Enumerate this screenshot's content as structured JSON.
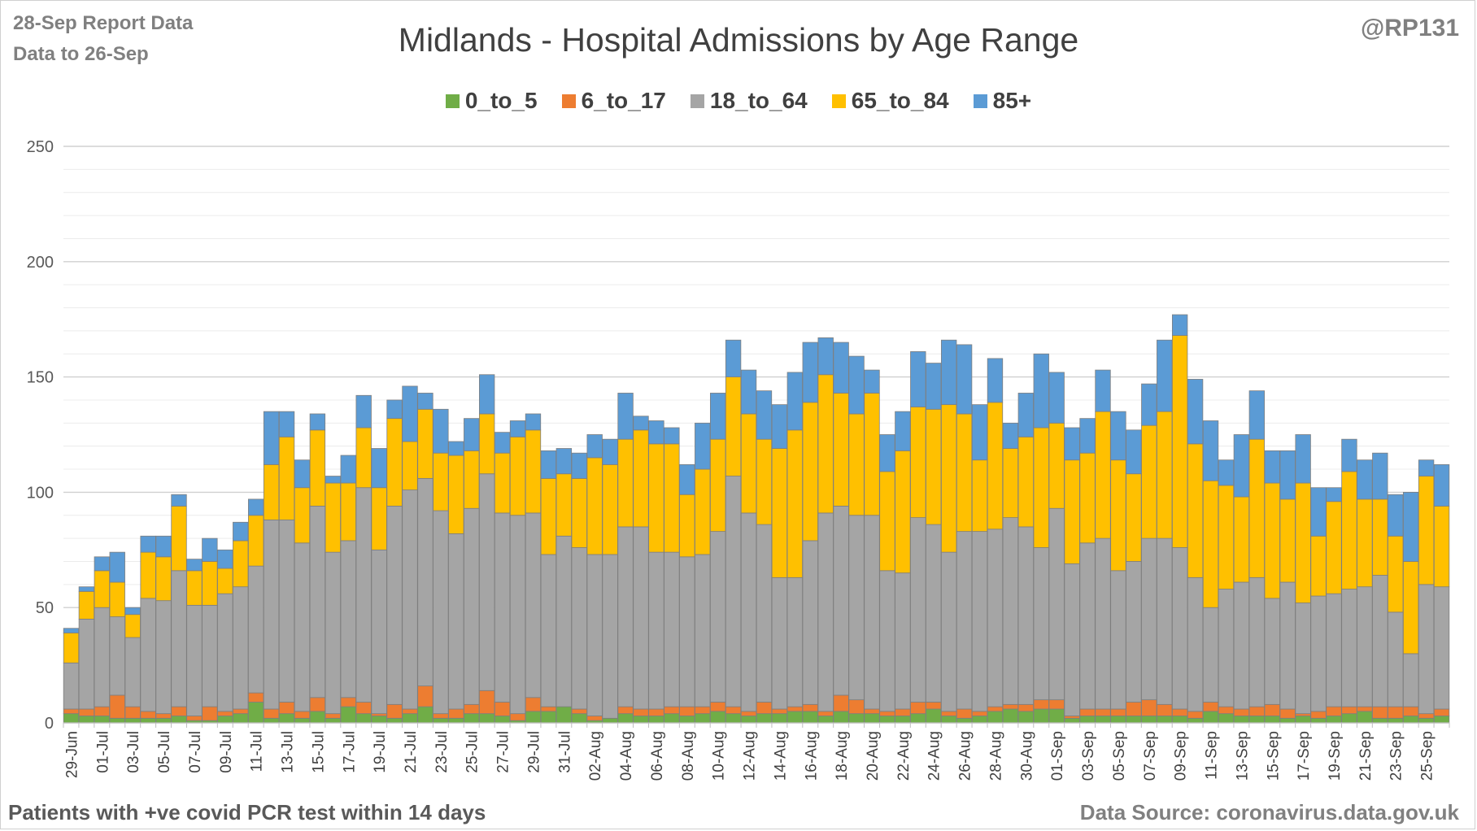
{
  "header": {
    "report_date": "28-Sep Report Data",
    "data_to": "Data to 26-Sep",
    "handle": "@RP131"
  },
  "footer": {
    "note": "Patients with  +ve covid PCR test within 14 days",
    "source": "Data Source: coronavirus.data.gov.uk"
  },
  "colors": {
    "0_to_5": "#70ad47",
    "6_to_17": "#ed7d31",
    "18_to_64": "#a5a5a5",
    "65_to_84": "#ffc000",
    "85+": "#5b9bd5",
    "gridline": "#d9d9d9",
    "bar_outline": "#7f7f7f"
  },
  "chart_data": {
    "type": "bar",
    "stacked": true,
    "title": "Midlands - Hospital Admissions by Age Range",
    "xlabel": "",
    "ylabel": "",
    "ylim": [
      0,
      250
    ],
    "yticks": [
      0,
      50,
      100,
      150,
      200,
      250
    ],
    "grid": true,
    "legend_position": "top",
    "tick_labels": [
      "29-Jun",
      "01-Jul",
      "03-Jul",
      "05-Jul",
      "07-Jul",
      "09-Jul",
      "11-Jul",
      "13-Jul",
      "15-Jul",
      "17-Jul",
      "19-Jul",
      "21-Jul",
      "23-Jul",
      "25-Jul",
      "27-Jul",
      "29-Jul",
      "31-Jul",
      "02-Aug",
      "04-Aug",
      "06-Aug",
      "08-Aug",
      "10-Aug",
      "12-Aug",
      "14-Aug",
      "16-Aug",
      "18-Aug",
      "20-Aug",
      "22-Aug",
      "24-Aug",
      "26-Aug",
      "28-Aug",
      "30-Aug",
      "01-Sep",
      "03-Sep",
      "05-Sep",
      "07-Sep",
      "09-Sep",
      "11-Sep",
      "13-Sep",
      "15-Sep",
      "17-Sep",
      "19-Sep",
      "21-Sep",
      "23-Sep",
      "25-Sep"
    ],
    "categories": [
      "29-Jun",
      "30-Jun",
      "01-Jul",
      "02-Jul",
      "03-Jul",
      "04-Jul",
      "05-Jul",
      "06-Jul",
      "07-Jul",
      "08-Jul",
      "09-Jul",
      "10-Jul",
      "11-Jul",
      "12-Jul",
      "13-Jul",
      "14-Jul",
      "15-Jul",
      "16-Jul",
      "17-Jul",
      "18-Jul",
      "19-Jul",
      "20-Jul",
      "21-Jul",
      "22-Jul",
      "23-Jul",
      "24-Jul",
      "25-Jul",
      "26-Jul",
      "27-Jul",
      "28-Jul",
      "29-Jul",
      "30-Jul",
      "31-Jul",
      "01-Aug",
      "02-Aug",
      "03-Aug",
      "04-Aug",
      "05-Aug",
      "06-Aug",
      "07-Aug",
      "08-Aug",
      "09-Aug",
      "10-Aug",
      "11-Aug",
      "12-Aug",
      "13-Aug",
      "14-Aug",
      "15-Aug",
      "16-Aug",
      "17-Aug",
      "18-Aug",
      "19-Aug",
      "20-Aug",
      "21-Aug",
      "22-Aug",
      "23-Aug",
      "24-Aug",
      "25-Aug",
      "26-Aug",
      "27-Aug",
      "28-Aug",
      "29-Aug",
      "30-Aug",
      "31-Aug",
      "01-Sep",
      "02-Sep",
      "03-Sep",
      "04-Sep",
      "05-Sep",
      "06-Sep",
      "07-Sep",
      "08-Sep",
      "09-Sep",
      "10-Sep",
      "11-Sep",
      "12-Sep",
      "13-Sep",
      "14-Sep",
      "15-Sep",
      "16-Sep",
      "17-Sep",
      "18-Sep",
      "19-Sep",
      "20-Sep",
      "21-Sep",
      "22-Sep",
      "23-Sep",
      "24-Sep",
      "25-Sep",
      "26-Sep"
    ],
    "series": [
      {
        "name": "0_to_5",
        "values": [
          4,
          3,
          3,
          2,
          2,
          2,
          2,
          3,
          1,
          1,
          3,
          4,
          9,
          2,
          4,
          2,
          5,
          2,
          7,
          4,
          3,
          2,
          4,
          7,
          2,
          2,
          4,
          4,
          3,
          1,
          5,
          5,
          7,
          4,
          1,
          2,
          4,
          3,
          3,
          4,
          3,
          4,
          5,
          4,
          3,
          4,
          4,
          5,
          5,
          3,
          5,
          4,
          4,
          3,
          3,
          4,
          6,
          3,
          2,
          3,
          5,
          6,
          5,
          6,
          6,
          2,
          3,
          3,
          3,
          3,
          3,
          3,
          3,
          2,
          5,
          4,
          3,
          3,
          3,
          2,
          3,
          2,
          3,
          4,
          5,
          2,
          2,
          3,
          2,
          3
        ]
      },
      {
        "name": "6_to_17",
        "values": [
          2,
          3,
          4,
          10,
          5,
          3,
          2,
          4,
          2,
          6,
          2,
          2,
          4,
          4,
          5,
          3,
          6,
          2,
          4,
          5,
          1,
          6,
          2,
          9,
          2,
          4,
          4,
          10,
          6,
          3,
          6,
          2,
          0,
          2,
          2,
          0,
          3,
          3,
          3,
          3,
          4,
          3,
          4,
          3,
          2,
          5,
          2,
          2,
          3,
          2,
          7,
          6,
          2,
          2,
          3,
          5,
          3,
          2,
          4,
          2,
          2,
          2,
          3,
          4,
          4,
          1,
          3,
          3,
          3,
          6,
          7,
          5,
          3,
          3,
          4,
          3,
          3,
          4,
          5,
          4,
          1,
          3,
          4,
          3,
          2,
          5,
          5,
          4,
          2,
          3
        ]
      },
      {
        "name": "18_to_64",
        "values": [
          20,
          39,
          43,
          34,
          30,
          49,
          49,
          59,
          48,
          44,
          51,
          53,
          55,
          82,
          79,
          73,
          83,
          70,
          68,
          93,
          71,
          86,
          95,
          90,
          88,
          76,
          85,
          94,
          82,
          86,
          80,
          66,
          74,
          70,
          70,
          71,
          78,
          79,
          68,
          67,
          65,
          66,
          74,
          100,
          86,
          77,
          57,
          56,
          71,
          86,
          82,
          80,
          84,
          61,
          59,
          80,
          77,
          69,
          77,
          78,
          77,
          81,
          77,
          66,
          83,
          66,
          72,
          74,
          60,
          61,
          70,
          72,
          70,
          58,
          41,
          51,
          55,
          56,
          46,
          55,
          48,
          50,
          49,
          51,
          52,
          57,
          41,
          23,
          56,
          53
        ]
      },
      {
        "name": "65_to_84",
        "values": [
          13,
          12,
          16,
          15,
          10,
          20,
          19,
          28,
          15,
          19,
          11,
          20,
          22,
          24,
          36,
          24,
          33,
          30,
          25,
          26,
          27,
          38,
          21,
          30,
          25,
          34,
          25,
          26,
          26,
          34,
          36,
          33,
          27,
          30,
          42,
          39,
          38,
          42,
          47,
          47,
          27,
          37,
          40,
          43,
          43,
          37,
          56,
          64,
          60,
          60,
          49,
          44,
          53,
          43,
          53,
          48,
          50,
          64,
          51,
          31,
          55,
          30,
          39,
          52,
          37,
          45,
          39,
          55,
          48,
          38,
          49,
          55,
          92,
          58,
          55,
          45,
          37,
          60,
          50,
          36,
          52,
          26,
          40,
          51,
          38,
          33,
          33,
          40,
          47,
          35
        ]
      },
      {
        "name": "85+",
        "values": [
          2,
          2,
          6,
          13,
          3,
          7,
          9,
          5,
          5,
          10,
          8,
          8,
          7,
          23,
          11,
          12,
          7,
          3,
          12,
          14,
          17,
          8,
          24,
          7,
          19,
          6,
          14,
          17,
          9,
          7,
          7,
          12,
          11,
          11,
          10,
          11,
          20,
          6,
          10,
          7,
          13,
          20,
          20,
          16,
          19,
          21,
          19,
          25,
          26,
          16,
          22,
          25,
          10,
          16,
          17,
          24,
          20,
          28,
          30,
          24,
          19,
          11,
          19,
          32,
          22,
          14,
          15,
          18,
          21,
          19,
          18,
          31,
          9,
          28,
          26,
          11,
          27,
          21,
          14,
          21,
          21,
          21,
          6,
          14,
          17,
          20,
          18,
          30,
          7,
          18
        ]
      }
    ]
  }
}
